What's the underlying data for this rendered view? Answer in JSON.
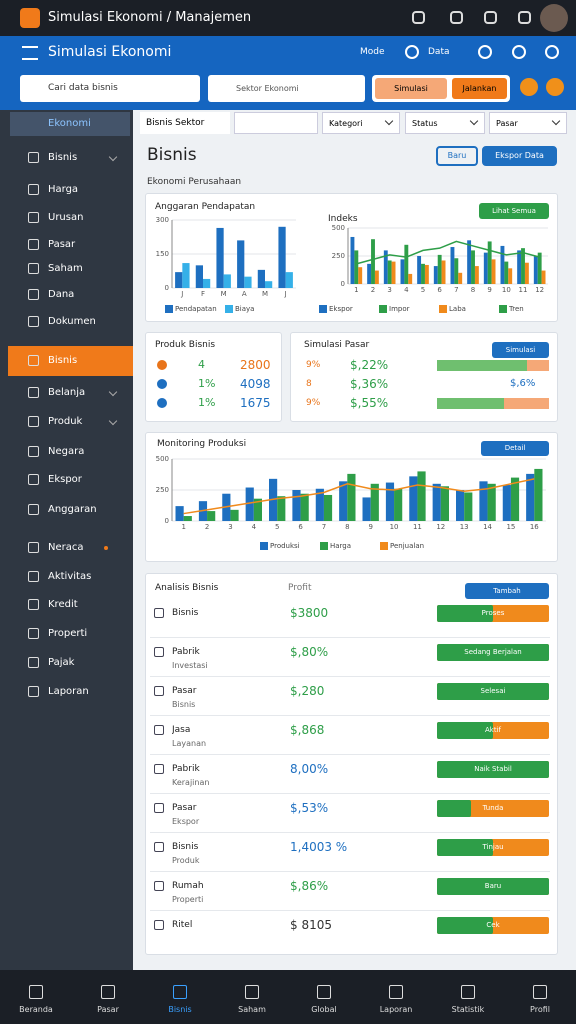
{
  "status_bar": {
    "title": "Simulasi Ekonomi / Manajemen"
  },
  "app_bar": {
    "title": "Simulasi Ekonomi",
    "actions": [
      "Mode",
      "Data"
    ]
  },
  "search": {
    "placeholder": "Cari data bisnis",
    "filter": "Sektor Ekonomi",
    "buttons": [
      "Simulasi",
      "Jalankan"
    ]
  },
  "sidebar": {
    "header": "Ekonomi",
    "active": 7,
    "items": [
      {
        "label": "Bisnis",
        "expandable": true
      },
      {
        "label": "Harga"
      },
      {
        "label": "Urusan"
      },
      {
        "label": "Pasar"
      },
      {
        "label": "Saham"
      },
      {
        "label": "Dana"
      },
      {
        "label": "Dokumen"
      },
      {
        "label": "Bisnis"
      },
      {
        "label": "Belanja",
        "expandable": true
      },
      {
        "label": "Produk",
        "expandable": true
      },
      {
        "label": "Negara"
      },
      {
        "label": "Ekspor"
      },
      {
        "label": "Anggaran"
      },
      {
        "label": "Neraca",
        "badge": true
      },
      {
        "label": "Aktivitas"
      },
      {
        "label": "Kredit"
      },
      {
        "label": "Properti"
      },
      {
        "label": "Pajak"
      },
      {
        "label": "Laporan"
      }
    ]
  },
  "filters": {
    "label": "Bisnis Sektor",
    "dropdowns": [
      "Kategori",
      "Status",
      "Pasar"
    ]
  },
  "page": {
    "title": "Bisnis",
    "subtitle": "Ekonomi Perusahaan",
    "buttons": [
      "Baru",
      "Ekspor Data"
    ]
  },
  "chart_data": [
    {
      "type": "bar",
      "title": "Anggaran Pendapatan",
      "categories": [
        "J",
        "F",
        "M",
        "A",
        "M",
        "J"
      ],
      "ylim": [
        0,
        300
      ],
      "yticks": [
        0,
        150,
        300
      ],
      "series": [
        {
          "name": "Pendapatan",
          "color": "#1e6fc0",
          "values": [
            70,
            100,
            265,
            210,
            80,
            270
          ]
        },
        {
          "name": "Biaya",
          "color": "#35b0e8",
          "values": [
            110,
            40,
            60,
            50,
            30,
            70
          ]
        }
      ]
    },
    {
      "type": "bar",
      "title": "Indeks",
      "button": "Lihat Semua",
      "categories": [
        "1",
        "2",
        "3",
        "4",
        "5",
        "6",
        "7",
        "8",
        "9",
        "10",
        "11",
        "12"
      ],
      "ylim": [
        0,
        500
      ],
      "yticks": [
        0,
        250,
        500
      ],
      "series": [
        {
          "name": "Ekspor",
          "color": "#1e6fc0",
          "values": [
            420,
            180,
            300,
            220,
            250,
            160,
            330,
            390,
            280,
            340,
            300,
            250
          ]
        },
        {
          "name": "Impor",
          "color": "#2e9e48",
          "values": [
            300,
            400,
            210,
            350,
            180,
            260,
            230,
            300,
            380,
            200,
            320,
            280
          ]
        },
        {
          "name": "Laba",
          "color": "#f08a1c",
          "values": [
            150,
            120,
            200,
            90,
            170,
            210,
            100,
            160,
            220,
            140,
            190,
            120
          ]
        },
        {
          "name": "Tren",
          "type": "line",
          "color": "#2e9e48",
          "values": [
            180,
            220,
            260,
            240,
            300,
            320,
            380,
            340,
            300,
            260,
            280,
            240
          ]
        }
      ]
    },
    {
      "type": "bar",
      "title": "Monitoring Produksi",
      "button": "Detail",
      "categories": [
        "1",
        "2",
        "3",
        "4",
        "5",
        "6",
        "7",
        "8",
        "9",
        "10",
        "11",
        "12",
        "13",
        "14",
        "15",
        "16"
      ],
      "ylim": [
        0,
        500
      ],
      "yticks": [
        0,
        250,
        500
      ],
      "series": [
        {
          "name": "Produksi",
          "color": "#1e6fc0",
          "values": [
            120,
            160,
            220,
            270,
            340,
            250,
            260,
            320,
            190,
            310,
            360,
            300,
            250,
            320,
            290,
            380
          ]
        },
        {
          "name": "Harga",
          "color": "#2e9e48",
          "values": [
            40,
            80,
            90,
            180,
            200,
            220,
            210,
            380,
            300,
            260,
            400,
            280,
            230,
            300,
            350,
            420
          ]
        },
        {
          "name": "Penjualan",
          "type": "line",
          "color": "#f08a1c",
          "values": [
            60,
            90,
            120,
            150,
            180,
            200,
            230,
            300,
            260,
            250,
            290,
            270,
            240,
            260,
            300,
            340
          ]
        }
      ]
    }
  ],
  "stats": {
    "title": "Produk Bisnis",
    "rows": [
      {
        "count": "4",
        "value": "2800",
        "color": "#e8741a"
      },
      {
        "count": "1%",
        "value": "4098",
        "color": "#1e6fc0"
      },
      {
        "count": "1%",
        "value": "1675",
        "color": "#1e6fc0"
      }
    ]
  },
  "market": {
    "title": "Simulasi Pasar",
    "button": "Simulasi",
    "rows": [
      {
        "code": "9%",
        "value": "$,22%",
        "progress": 80
      },
      {
        "code": "8",
        "value": "$,36%",
        "note": "$,6%"
      },
      {
        "code": "9%",
        "value": "$,55%",
        "progress": 60
      }
    ]
  },
  "table": {
    "title": "Analisis Bisnis",
    "column": "Profit",
    "button": "Tambah",
    "rows": [
      {
        "name": "Bisnis",
        "value": "$3800",
        "color": "#2e9e48",
        "status": "Proses",
        "progress": 50
      },
      {
        "name": "Pabrik",
        "sub": "Investasi",
        "value": "$,80%",
        "color": "#2e9e48",
        "status": "Sedang Berjalan",
        "progress": 100
      },
      {
        "name": "Pasar",
        "sub": "Bisnis",
        "value": "$,280",
        "color": "#2e9e48",
        "status": "Selesai",
        "progress": 100
      },
      {
        "name": "Jasa",
        "sub": "Layanan",
        "value": "$,868",
        "color": "#2e9e48",
        "status": "Aktif",
        "progress": 50
      },
      {
        "name": "Pabrik",
        "sub": "Kerajinan",
        "value": "8,00%",
        "color": "#1e6fc0",
        "status": "Naik Stabil",
        "progress": 100
      },
      {
        "name": "Pasar",
        "sub": "Ekspor",
        "value": "$,53%",
        "color": "#1e6fc0",
        "status": "Tunda",
        "progress": 30
      },
      {
        "name": "Bisnis",
        "sub": "Produk",
        "value": "1,4003 %",
        "color": "#1e6fc0",
        "status": "Tinjau",
        "progress": 50
      },
      {
        "name": "Rumah",
        "sub": "Properti",
        "value": "$,86%",
        "color": "#2e9e48",
        "status": "Baru",
        "progress": 100
      },
      {
        "name": "Ritel",
        "value": "$ 8105",
        "color": "#333333",
        "status": "Cek",
        "progress": 50
      }
    ]
  },
  "bottom_nav": {
    "active": 2,
    "items": [
      "Beranda",
      "Pasar",
      "Bisnis",
      "Saham",
      "Global",
      "Laporan",
      "Statistik",
      "Profil"
    ]
  }
}
